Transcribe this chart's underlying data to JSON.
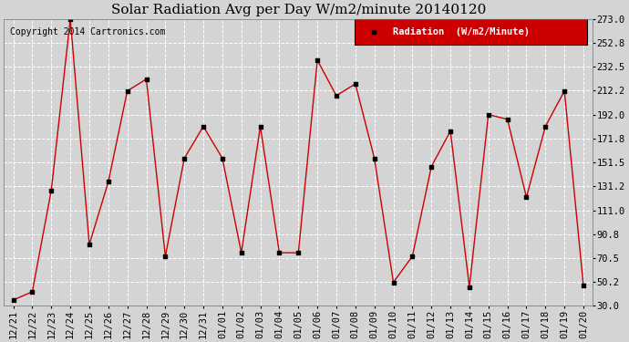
{
  "title": "Solar Radiation Avg per Day W/m2/minute 20140120",
  "copyright": "Copyright 2014 Cartronics.com",
  "legend_label": "Radiation  (W/m2/Minute)",
  "dates": [
    "12/21",
    "12/22",
    "12/23",
    "12/24",
    "12/25",
    "12/26",
    "12/27",
    "12/28",
    "12/29",
    "12/30",
    "12/31",
    "01/01",
    "01/02",
    "01/03",
    "01/04",
    "01/05",
    "01/06",
    "01/07",
    "01/08",
    "01/09",
    "01/10",
    "01/11",
    "01/12",
    "01/13",
    "01/14",
    "01/15",
    "01/16",
    "01/17",
    "01/18",
    "01/19",
    "01/20"
  ],
  "values": [
    35.0,
    42.0,
    128.0,
    273.0,
    82.0,
    135.0,
    212.0,
    222.0,
    72.0,
    155.0,
    182.0,
    155.0,
    75.0,
    182.0,
    75.0,
    75.0,
    238.0,
    208.0,
    218.0,
    155.0,
    50.0,
    72.0,
    148.0,
    178.0,
    46.0,
    192.0,
    188.0,
    122.0,
    182.0,
    212.0,
    47.0
  ],
  "ylim": [
    30.0,
    273.0
  ],
  "ytick_values": [
    30.0,
    50.2,
    70.5,
    90.8,
    111.0,
    131.2,
    151.5,
    171.8,
    192.0,
    212.2,
    232.5,
    252.8,
    273.0
  ],
  "line_color": "#cc0000",
  "marker_color": "#000000",
  "bg_color": "#d4d4d4",
  "plot_bg_color": "#d4d4d4",
  "grid_color": "#ffffff",
  "title_fontsize": 11,
  "copyright_fontsize": 7,
  "tick_fontsize": 7.5,
  "legend_bg_color": "#cc0000",
  "legend_text_color": "#ffffff",
  "legend_fontsize": 7.5
}
